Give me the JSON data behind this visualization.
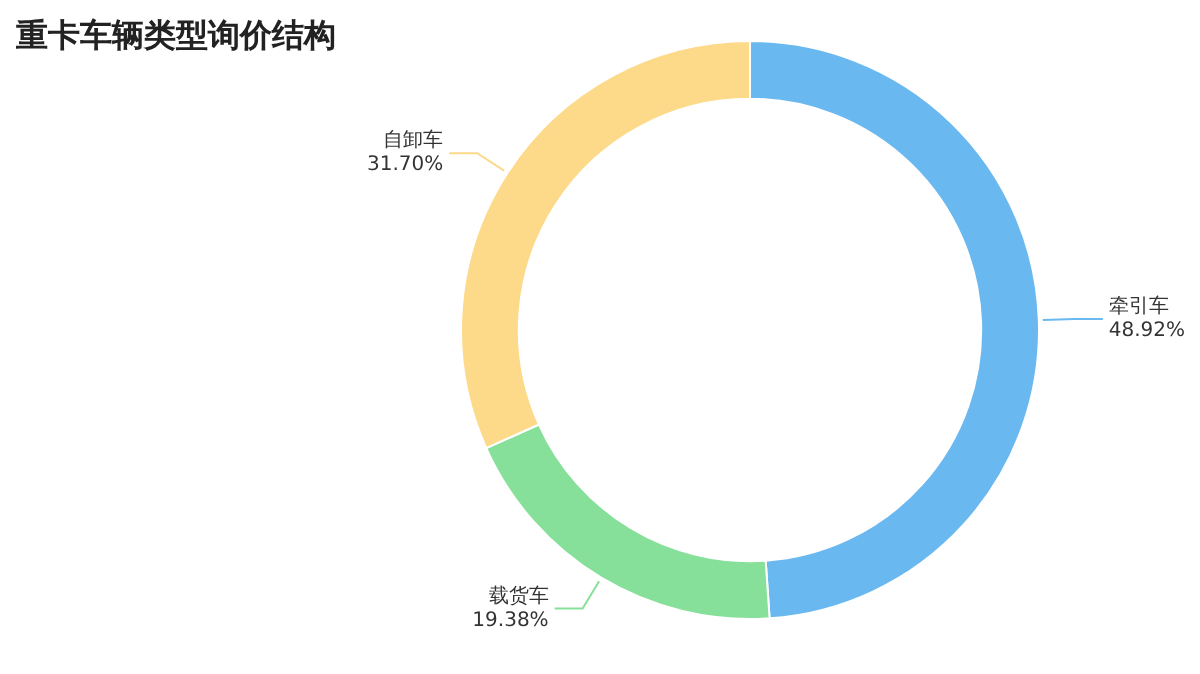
{
  "chart_data": {
    "type": "donut",
    "title": "重卡车辆类型询价结构",
    "categories": [
      "牵引车",
      "载货车",
      "自卸车"
    ],
    "values": [
      48.92,
      19.38,
      31.7
    ],
    "value_labels": [
      "48.92%",
      "19.38%",
      "31.70%"
    ],
    "colors": [
      "#6ab8f0",
      "#86e09a",
      "#fdd98a"
    ]
  }
}
